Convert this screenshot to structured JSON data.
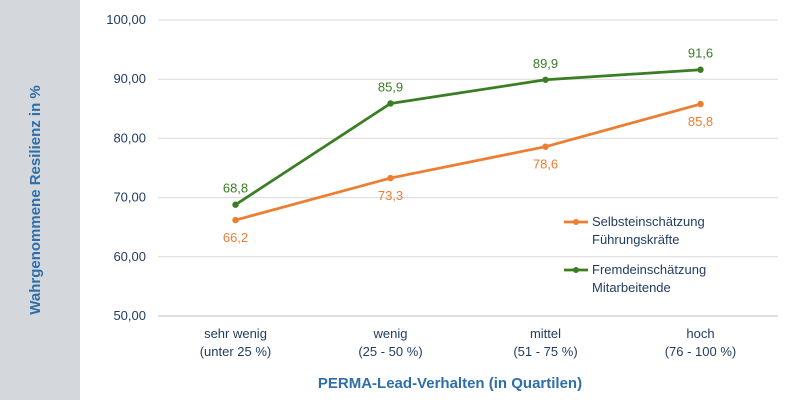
{
  "chart_data": {
    "type": "line",
    "categories": [
      [
        "sehr wenig",
        "(unter 25 %)"
      ],
      [
        "wenig",
        "(25 - 50 %)"
      ],
      [
        "mittel",
        "(51 - 75 %)"
      ],
      [
        "hoch",
        "(76 - 100 %)"
      ]
    ],
    "series": [
      {
        "name": [
          "Selbsteinschätzung",
          "Führungskräfte"
        ],
        "color": "#ed7d31",
        "values": [
          66.2,
          73.3,
          78.6,
          85.8
        ],
        "labels": [
          "66,2",
          "73,3",
          "78,6",
          "85,8"
        ],
        "label_position": "below"
      },
      {
        "name": [
          "Fremdeinschätzung",
          "Mitarbeitende"
        ],
        "color": "#3a7d22",
        "values": [
          68.8,
          85.9,
          89.9,
          91.6
        ],
        "labels": [
          "68,8",
          "85,9",
          "89,9",
          "91,6"
        ],
        "label_position": "above"
      }
    ],
    "xlabel": "PERMA-Lead-Verhalten (in Quartilen)",
    "ylabel": "Wahrgenommene Resilienz in %",
    "ylim": [
      50,
      100
    ],
    "yticks": [
      50,
      60,
      70,
      80,
      90,
      100
    ],
    "ytick_labels": [
      "50,00",
      "60,00",
      "70,00",
      "80,00",
      "90,00",
      "100,00"
    ],
    "grid": "horizontal",
    "legend": "right"
  }
}
